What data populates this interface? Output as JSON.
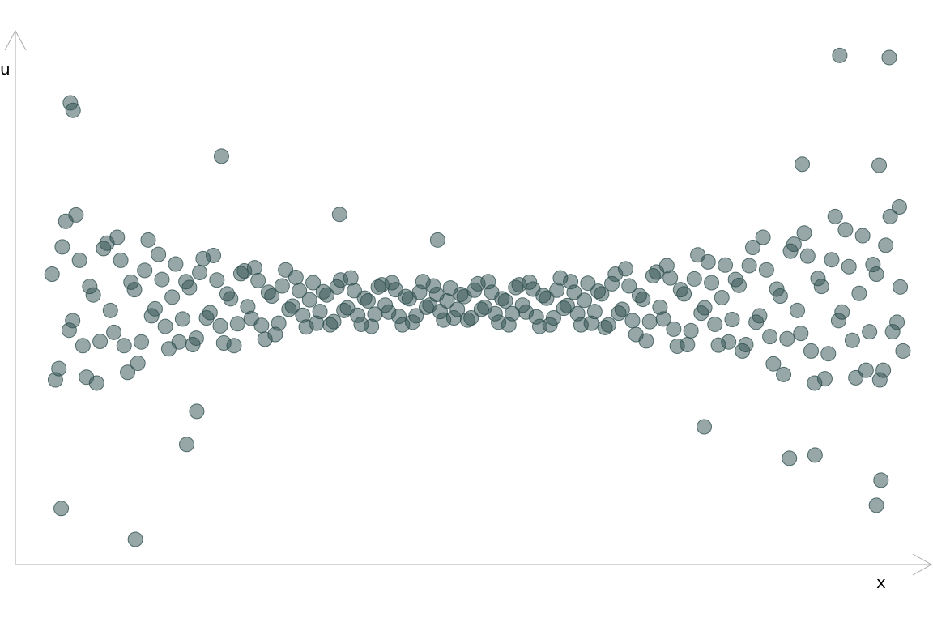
{
  "chart_data": {
    "type": "scatter",
    "xlabel": "x",
    "ylabel": "u",
    "color": "#2f4f4f",
    "xlim": [
      0,
      100
    ],
    "ylim": [
      0,
      100
    ],
    "series": [
      {
        "x": [
          4.0,
          4.75,
          5.5,
          6.25,
          7.0,
          7.75,
          8.5,
          9.25,
          10.0,
          10.75,
          11.5,
          12.25,
          13.0,
          13.75,
          14.5,
          15.25,
          16.0,
          16.75,
          17.5,
          18.25,
          19.0,
          19.75,
          20.5,
          21.25,
          22.0,
          22.75,
          23.5,
          24.25,
          25.0,
          25.75,
          26.5,
          27.25,
          28.0,
          28.75,
          29.5,
          30.25,
          31.0,
          31.75,
          32.5,
          33.25,
          34.0,
          34.75,
          35.5,
          36.25,
          37.0,
          37.75,
          38.5,
          39.25,
          40.0,
          40.75,
          41.5,
          42.25,
          43.0,
          43.75,
          44.5,
          45.25,
          46.0,
          46.75,
          47.5,
          48.25,
          49.0,
          49.75,
          50.5,
          51.25,
          52.0,
          52.75,
          53.5,
          54.25,
          55.0,
          55.75,
          56.5,
          57.25,
          58.0,
          58.75,
          59.5,
          60.25,
          61.0,
          61.75,
          62.5,
          63.25,
          64.0,
          64.75,
          65.5,
          66.25,
          67.0,
          67.75,
          68.5,
          69.25,
          70.0,
          70.75,
          71.5,
          72.25,
          73.0,
          73.75,
          74.5,
          75.25,
          76.0,
          76.75,
          77.5,
          78.25,
          79.0,
          79.75,
          80.5,
          81.25,
          82.0,
          82.75,
          83.5,
          84.25,
          85.0,
          85.75,
          86.5,
          87.25,
          88.0,
          88.75,
          89.5,
          90.25,
          91.0,
          91.75,
          92.5,
          93.25,
          94.0,
          94.75,
          95.5,
          96.25,
          96.6,
          4.37,
          5.12,
          5.87,
          6.62,
          7.37,
          8.12,
          8.87,
          9.62,
          10.37,
          11.12,
          11.87,
          12.62,
          13.37,
          14.12,
          14.87,
          15.62,
          16.37,
          17.12,
          17.87,
          18.62,
          19.37,
          20.12,
          20.87,
          21.62,
          22.37,
          23.12,
          23.87,
          24.62,
          25.37,
          26.12,
          26.87,
          27.62,
          28.37,
          29.12,
          29.87,
          30.62,
          31.37,
          32.12,
          32.87,
          33.62,
          34.37,
          35.12,
          35.87,
          36.62,
          37.37,
          38.12,
          38.87,
          39.62,
          40.37,
          41.12,
          41.87,
          42.62,
          43.37,
          44.12,
          44.87,
          45.62,
          46.37,
          47.12,
          47.87,
          48.62,
          49.37,
          50.12,
          50.87,
          51.62,
          52.37,
          53.12,
          53.87,
          54.62,
          55.37,
          56.12,
          56.87,
          57.62,
          58.37,
          59.12,
          59.87,
          60.62,
          61.37,
          62.12,
          62.87,
          63.62,
          64.37,
          65.12,
          65.87,
          66.62,
          67.37,
          68.12,
          68.87,
          69.62,
          70.37,
          71.12,
          71.87,
          72.62,
          73.37,
          74.12,
          74.87,
          75.62,
          76.37,
          77.12,
          77.87,
          78.62,
          79.37,
          80.12,
          80.87,
          81.62,
          82.37,
          83.12,
          83.87,
          84.62,
          85.37,
          86.12,
          86.87,
          87.62,
          88.37,
          89.12,
          89.87,
          90.62,
          91.37,
          92.12,
          92.87,
          93.62,
          94.37,
          95.02,
          95.77,
          96.5,
          96.9,
          90.0,
          95.4,
          6.0,
          6.3,
          13.1,
          5.0,
          94.0,
          94.5,
          22.5,
          35.4,
          46.1,
          19.8,
          18.7,
          75.2,
          84.5,
          87.3,
          85.9,
          94.3
        ],
        "values": [
          54.4,
          36.7,
          64.3,
          45.7,
          57.0,
          35.1,
          50.5,
          41.8,
          60.2,
          43.5,
          57.0,
          36.0,
          51.5,
          41.7,
          60.8,
          47.9,
          53.4,
          40.4,
          56.3,
          46.0,
          51.9,
          42.4,
          57.3,
          47.2,
          53.3,
          41.5,
          49.8,
          45.1,
          55.0,
          46.1,
          53.2,
          42.2,
          50.3,
          45.2,
          55.2,
          48.4,
          51.3,
          44.5,
          52.8,
          47.4,
          50.5,
          45.5,
          53.3,
          48.1,
          51.3,
          45.0,
          49.4,
          46.9,
          52.4,
          47.3,
          51.5,
          44.9,
          49.8,
          46.6,
          53.0,
          48.6,
          50.6,
          45.8,
          51.8,
          47.8,
          50.2,
          46.2,
          52.6,
          48.2,
          51.0,
          45.4,
          49.4,
          47.0,
          52.4,
          47.3,
          51.6,
          44.6,
          49.9,
          46.2,
          53.7,
          48.5,
          51.0,
          44.9,
          52.7,
          47.4,
          50.7,
          44.9,
          54.4,
          47.8,
          52.2,
          43.1,
          49.7,
          45.5,
          54.8,
          46.0,
          53.7,
          40.9,
          50.7,
          43.8,
          58.0,
          48.1,
          52.8,
          41.1,
          56.1,
          45.9,
          52.3,
          41.2,
          59.4,
          46.6,
          55.2,
          37.6,
          50.3,
          42.3,
          60.0,
          43.3,
          57.8,
          34.0,
          52.1,
          39.5,
          65.2,
          47.3,
          55.8,
          35.0,
          61.6,
          43.6,
          54.4,
          36.4,
          65.2,
          45.4,
          52.0,
          34.6,
          59.5,
          43.9,
          65.5,
          41.0,
          52.1,
          34.0,
          59.2,
          47.6,
          61.3,
          41.0,
          52.9,
          37.7,
          55.1,
          46.6,
          58.1,
          44.6,
          50.1,
          41.7,
          53.0,
          41.2,
          54.7,
          46.2,
          57.9,
          44.7,
          50.7,
          41.0,
          54.5,
          48.3,
          55.6,
          44.8,
          51.0,
          43.1,
          52.2,
          47.8,
          53.8,
          46.7,
          49.6,
          45.2,
          51.1,
          44.9,
          52.0,
          47.6,
          53.7,
          46.7,
          49.9,
          44.6,
          52.0,
          48.6,
          52.8,
          46.5,
          50.2,
          45.4,
          51.0,
          48.2,
          52.2,
          47.4,
          49.4,
          46.2,
          50.6,
          45.8,
          51.4,
          47.8,
          53.0,
          47.0,
          49.8,
          44.9,
          51.9,
          48.6,
          52.9,
          46.4,
          50.4,
          44.9,
          51.4,
          48.0,
          53.0,
          47.0,
          49.5,
          45.2,
          51.2,
          44.4,
          52.6,
          47.1,
          55.4,
          45.7,
          50.4,
          41.9,
          54.1,
          48.2,
          56.0,
          44.1,
          51.5,
          41.2,
          53.5,
          47.1,
          56.7,
          45.0,
          50.0,
          41.7,
          53.4,
          40.0,
          56.0,
          45.4,
          61.3,
          42.7,
          51.6,
          35.6,
          58.7,
          47.6,
          62.1,
          40.0,
          53.6,
          34.8,
          57.1,
          45.7,
          62.7,
          42.0,
          50.8,
          36.4,
          56.2,
          34.6,
          59.8,
          43.6,
          67.0,
          40.0,
          95.4,
          95.0,
          86.5,
          85.1,
          4.7,
          10.5,
          11.1,
          15.8,
          76.5,
          65.6,
          60.8,
          28.7,
          22.5,
          25.8,
          19.9,
          20.5,
          75.0,
          74.8
        ]
      }
    ]
  }
}
